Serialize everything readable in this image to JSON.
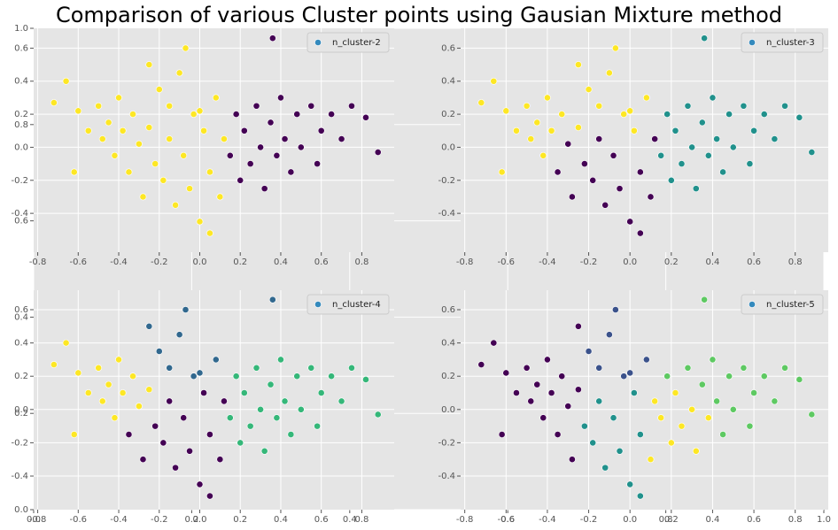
{
  "chart_data": [
    {
      "type": "axes",
      "title": "Comparison of various Cluster points using Gausian Mixture method",
      "xlim": [
        0,
        1
      ],
      "ylim": [
        0,
        1
      ],
      "xticks": [
        {
          "value": 0,
          "label": "0.0"
        },
        0.2,
        0.4,
        0.6,
        0.8,
        {
          "value": 1,
          "label": "1.0"
        }
      ],
      "yticks": [
        {
          "value": 0,
          "label": "0.0"
        },
        0.2,
        0.4,
        0.6,
        0.8,
        {
          "value": 1,
          "label": "1.0"
        }
      ],
      "grid": true
    },
    {
      "type": "scatter",
      "legend": {
        "label": "n_cluster-2",
        "color": "#348abd"
      },
      "legend_loc": "upper right",
      "grid": true,
      "xlim": [
        -0.82,
        0.96
      ],
      "ylim": [
        -0.635,
        0.72
      ],
      "xticks": [
        -0.8,
        -0.6,
        -0.4,
        -0.2,
        {
          "value": 0,
          "label": "0.0"
        },
        0.2,
        0.4,
        0.6,
        0.8
      ],
      "yticks": [
        -0.4,
        -0.2,
        {
          "value": 0,
          "label": "0.0"
        },
        0.2,
        0.4,
        0.6
      ],
      "series": [
        {
          "color": "#fde725",
          "x": [
            -0.72,
            -0.66,
            -0.6,
            -0.55,
            -0.5,
            -0.48,
            -0.45,
            -0.42,
            -0.4,
            -0.38,
            -0.35,
            -0.33,
            -0.3,
            -0.28,
            -0.25,
            -0.22,
            -0.2,
            -0.18,
            -0.15,
            -0.12,
            -0.1,
            -0.08,
            -0.05,
            -0.03,
            0.0,
            0.02,
            0.05,
            0.08,
            0.1,
            0.12,
            -0.07,
            -0.62,
            -0.25,
            0.0,
            -0.15,
            0.05
          ],
          "values": [
            0.27,
            0.4,
            0.22,
            0.1,
            0.25,
            0.05,
            0.15,
            -0.05,
            0.3,
            0.1,
            -0.15,
            0.2,
            0.02,
            -0.3,
            0.12,
            -0.1,
            0.35,
            -0.2,
            0.05,
            -0.35,
            0.45,
            -0.05,
            -0.25,
            0.2,
            -0.45,
            0.1,
            -0.15,
            0.3,
            -0.3,
            0.05,
            0.6,
            -0.15,
            0.5,
            0.22,
            0.25,
            -0.52
          ]
        },
        {
          "color": "#440154",
          "x": [
            0.15,
            0.18,
            0.2,
            0.22,
            0.25,
            0.28,
            0.3,
            0.32,
            0.35,
            0.38,
            0.4,
            0.42,
            0.45,
            0.48,
            0.5,
            0.55,
            0.58,
            0.6,
            0.65,
            0.7,
            0.75,
            0.82,
            0.88,
            0.36
          ],
          "values": [
            -0.05,
            0.2,
            -0.2,
            0.1,
            -0.1,
            0.25,
            0.0,
            -0.25,
            0.15,
            -0.05,
            0.3,
            0.05,
            -0.15,
            0.2,
            0.0,
            0.25,
            -0.1,
            0.1,
            0.2,
            0.05,
            0.25,
            0.18,
            -0.03,
            0.66
          ]
        }
      ]
    },
    {
      "type": "scatter",
      "legend": {
        "label": "n_cluster-3",
        "color": "#348abd"
      },
      "legend_loc": "upper right",
      "grid": true,
      "xlim": [
        -0.82,
        0.96
      ],
      "ylim": [
        -0.635,
        0.72
      ],
      "xticks": [
        -0.8,
        -0.6,
        -0.4,
        -0.2,
        {
          "value": 0,
          "label": "0.0"
        },
        0.2,
        0.4,
        0.6,
        0.8
      ],
      "yticks": [
        -0.4,
        -0.2,
        {
          "value": 0,
          "label": "0.0"
        },
        0.2,
        0.4,
        0.6
      ],
      "series": [
        {
          "color": "#fde725",
          "x": [
            -0.72,
            -0.66,
            -0.6,
            -0.55,
            -0.5,
            -0.48,
            -0.45,
            -0.42,
            -0.4,
            -0.38,
            -0.33,
            -0.25,
            -0.2,
            -0.1,
            -0.03,
            0.02,
            0.08,
            -0.07,
            -0.62,
            -0.25,
            0.0,
            -0.15
          ],
          "values": [
            0.27,
            0.4,
            0.22,
            0.1,
            0.25,
            0.05,
            0.15,
            -0.05,
            0.3,
            0.1,
            0.2,
            0.12,
            0.35,
            0.45,
            0.2,
            0.1,
            0.3,
            0.6,
            -0.15,
            0.5,
            0.22,
            0.25
          ]
        },
        {
          "color": "#440154",
          "x": [
            -0.35,
            -0.3,
            -0.28,
            -0.22,
            -0.18,
            -0.15,
            -0.12,
            -0.08,
            -0.05,
            0.0,
            0.05,
            0.1,
            0.12,
            0.05
          ],
          "values": [
            -0.15,
            0.02,
            -0.3,
            -0.1,
            -0.2,
            0.05,
            -0.35,
            -0.05,
            -0.25,
            -0.45,
            -0.15,
            -0.3,
            0.05,
            -0.52
          ]
        },
        {
          "color": "#21918c",
          "x": [
            0.15,
            0.18,
            0.2,
            0.22,
            0.25,
            0.28,
            0.3,
            0.32,
            0.35,
            0.38,
            0.4,
            0.42,
            0.45,
            0.48,
            0.5,
            0.55,
            0.58,
            0.6,
            0.65,
            0.7,
            0.75,
            0.82,
            0.88,
            0.36
          ],
          "values": [
            -0.05,
            0.2,
            -0.2,
            0.1,
            -0.1,
            0.25,
            0.0,
            -0.25,
            0.15,
            -0.05,
            0.3,
            0.05,
            -0.15,
            0.2,
            0.0,
            0.25,
            -0.1,
            0.1,
            0.2,
            0.05,
            0.25,
            0.18,
            -0.03,
            0.66
          ]
        }
      ]
    },
    {
      "type": "scatter",
      "legend": {
        "label": "n_cluster-4",
        "color": "#348abd"
      },
      "legend_loc": "upper right",
      "grid": true,
      "xlim": [
        -0.82,
        0.96
      ],
      "ylim": [
        -0.602,
        0.717
      ],
      "xticks": [
        -0.8,
        -0.6,
        -0.4,
        -0.2,
        {
          "value": 0,
          "label": "0.0"
        },
        0.2,
        0.4,
        0.6,
        0.8
      ],
      "yticks": [
        -0.4,
        -0.2,
        {
          "value": 0,
          "label": "0.0"
        },
        0.2,
        0.4,
        0.6
      ],
      "series": [
        {
          "color": "#fde725",
          "x": [
            -0.72,
            -0.66,
            -0.6,
            -0.55,
            -0.5,
            -0.48,
            -0.45,
            -0.42,
            -0.4,
            -0.38,
            -0.33,
            -0.3,
            -0.25,
            -0.62
          ],
          "values": [
            0.27,
            0.4,
            0.22,
            0.1,
            0.25,
            0.05,
            0.15,
            -0.05,
            0.3,
            0.1,
            0.2,
            0.02,
            0.12,
            -0.15
          ]
        },
        {
          "color": "#440154",
          "x": [
            -0.35,
            -0.28,
            -0.22,
            -0.18,
            -0.15,
            -0.12,
            -0.08,
            -0.05,
            0.0,
            0.02,
            0.05,
            0.1,
            0.12,
            0.05
          ],
          "values": [
            -0.15,
            -0.3,
            -0.1,
            -0.2,
            0.05,
            -0.35,
            -0.05,
            -0.25,
            -0.45,
            0.1,
            -0.15,
            -0.3,
            0.05,
            -0.52
          ]
        },
        {
          "color": "#31688e",
          "x": [
            -0.2,
            -0.1,
            -0.03,
            0.08,
            -0.07,
            -0.25,
            0.0,
            -0.15,
            0.36
          ],
          "values": [
            0.35,
            0.45,
            0.2,
            0.3,
            0.6,
            0.5,
            0.22,
            0.25,
            0.66
          ]
        },
        {
          "color": "#35b779",
          "x": [
            0.15,
            0.18,
            0.2,
            0.22,
            0.25,
            0.28,
            0.3,
            0.32,
            0.35,
            0.38,
            0.4,
            0.42,
            0.45,
            0.48,
            0.5,
            0.55,
            0.58,
            0.6,
            0.65,
            0.7,
            0.75,
            0.82,
            0.88
          ],
          "values": [
            -0.05,
            0.2,
            -0.2,
            0.1,
            -0.1,
            0.25,
            0.0,
            -0.25,
            0.15,
            -0.05,
            0.3,
            0.05,
            -0.15,
            0.2,
            0.0,
            0.25,
            -0.1,
            0.1,
            0.2,
            0.05,
            0.25,
            0.18,
            -0.03
          ]
        }
      ]
    },
    {
      "type": "scatter",
      "legend": {
        "label": "n_cluster-5",
        "color": "#348abd"
      },
      "legend_loc": "upper right",
      "grid": true,
      "xlim": [
        -0.82,
        0.96
      ],
      "ylim": [
        -0.602,
        0.717
      ],
      "xticks": [
        -0.8,
        -0.6,
        -0.4,
        -0.2,
        {
          "value": 0,
          "label": "0.0"
        },
        0.2,
        0.4,
        0.6,
        0.8
      ],
      "yticks": [
        -0.4,
        -0.2,
        {
          "value": 0,
          "label": "0.0"
        },
        0.2,
        0.4,
        0.6
      ],
      "series": [
        {
          "color": "#440154",
          "x": [
            -0.72,
            -0.66,
            -0.6,
            -0.55,
            -0.5,
            -0.48,
            -0.45,
            -0.42,
            -0.4,
            -0.38,
            -0.35,
            -0.33,
            -0.3,
            -0.28,
            -0.25,
            -0.62,
            -0.25
          ],
          "values": [
            0.27,
            0.4,
            0.22,
            0.1,
            0.25,
            0.05,
            0.15,
            -0.05,
            0.3,
            0.1,
            -0.15,
            0.2,
            0.02,
            -0.3,
            0.12,
            -0.15,
            0.5
          ]
        },
        {
          "color": "#3b528b",
          "x": [
            -0.2,
            -0.1,
            -0.03,
            0.08,
            -0.07,
            0.0,
            -0.15
          ],
          "values": [
            0.35,
            0.45,
            0.2,
            0.3,
            0.6,
            0.22,
            0.25
          ]
        },
        {
          "color": "#21918c",
          "x": [
            -0.22,
            -0.18,
            -0.15,
            -0.12,
            -0.08,
            -0.05,
            0.0,
            0.02,
            0.05,
            0.05
          ],
          "values": [
            -0.1,
            -0.2,
            0.05,
            -0.35,
            -0.05,
            -0.25,
            -0.45,
            0.1,
            -0.15,
            -0.52
          ]
        },
        {
          "color": "#fde725",
          "x": [
            0.1,
            0.12,
            0.15,
            0.2,
            0.22,
            0.25,
            0.3,
            0.32,
            0.38
          ],
          "values": [
            -0.3,
            0.05,
            -0.05,
            -0.2,
            0.1,
            -0.1,
            0.0,
            -0.25,
            -0.05
          ]
        },
        {
          "color": "#5ec962",
          "x": [
            0.18,
            0.28,
            0.35,
            0.4,
            0.42,
            0.45,
            0.48,
            0.5,
            0.55,
            0.58,
            0.6,
            0.65,
            0.7,
            0.75,
            0.82,
            0.88,
            0.36
          ],
          "values": [
            0.2,
            0.25,
            0.15,
            0.3,
            0.05,
            -0.15,
            0.2,
            0.0,
            0.25,
            -0.1,
            0.1,
            0.2,
            0.05,
            0.25,
            0.18,
            -0.03,
            0.66
          ]
        }
      ]
    }
  ]
}
